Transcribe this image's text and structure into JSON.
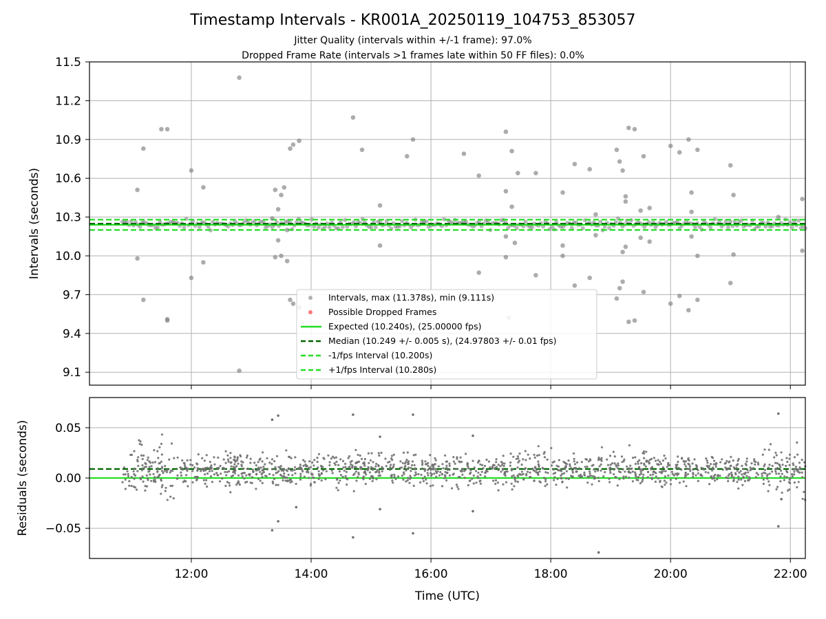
{
  "chart_data": [
    {
      "type": "scatter",
      "title": "Timestamp Intervals - KR001A_20250119_104753_853057",
      "subtitle_lines": [
        "Jitter Quality (intervals within +/-1 frame): 97.0%",
        "Dropped Frame Rate (intervals >1 frames late within 50 FF files): 0.0%"
      ],
      "ylabel": "Intervals (seconds)",
      "xlim": [
        10.3,
        22.25
      ],
      "ylim": [
        9.0,
        11.5
      ],
      "yticks": [
        9.1,
        9.4,
        9.7,
        10.0,
        10.3,
        10.6,
        10.9,
        11.2,
        11.5
      ],
      "ytick_labels": [
        "9.1",
        "9.4",
        "9.7",
        "10.0",
        "10.3",
        "10.6",
        "10.9",
        "11.2",
        "11.5"
      ],
      "xticks": [
        12,
        14,
        16,
        18,
        20,
        22
      ],
      "grid": true,
      "legend_position": "lower-center",
      "series": [
        {
          "name": "Intervals, max (11.378s), min (9.111s)",
          "color": "#808080",
          "marker": "circle",
          "x": [
            11.1,
            11.1,
            11.2,
            11.2,
            11.5,
            11.6,
            11.6,
            11.6,
            12.0,
            12.0,
            12.2,
            12.2,
            12.8,
            12.8,
            13.35,
            13.4,
            13.4,
            13.45,
            13.45,
            13.5,
            13.5,
            13.55,
            13.6,
            13.6,
            13.65,
            13.65,
            13.7,
            13.7,
            13.8,
            13.8,
            14.7,
            14.85,
            15.15,
            15.15,
            15.6,
            15.7,
            16.55,
            16.8,
            16.8,
            17.25,
            17.25,
            17.25,
            17.25,
            17.3,
            17.35,
            17.35,
            17.4,
            17.45,
            17.75,
            17.75,
            18.2,
            18.2,
            18.2,
            18.4,
            18.4,
            18.65,
            18.65,
            18.75,
            18.75,
            19.1,
            19.1,
            19.15,
            19.15,
            19.2,
            19.2,
            19.2,
            19.25,
            19.25,
            19.25,
            19.3,
            19.3,
            19.4,
            19.4,
            19.5,
            19.5,
            19.55,
            19.55,
            19.65,
            19.65,
            20.0,
            20.0,
            20.15,
            20.15,
            20.3,
            20.3,
            20.35,
            20.35,
            20.35,
            20.45,
            20.45,
            20.45,
            21.0,
            21.0,
            21.05,
            21.05,
            21.8,
            22.2,
            22.2
          ],
          "y": [
            10.51,
            9.98,
            10.83,
            9.66,
            10.98,
            9.51,
            10.98,
            9.5,
            10.66,
            9.83,
            10.53,
            9.95,
            11.378,
            9.111,
            10.29,
            10.51,
            9.99,
            10.36,
            10.12,
            10.47,
            10.0,
            10.53,
            9.96,
            10.2,
            10.83,
            9.66,
            10.86,
            9.63,
            10.89,
            9.6,
            11.07,
            10.82,
            10.39,
            10.08,
            10.77,
            10.9,
            10.79,
            10.62,
            9.87,
            10.96,
            10.5,
            10.15,
            9.99,
            9.52,
            10.81,
            10.38,
            10.1,
            10.64,
            10.64,
            9.85,
            10.49,
            10.08,
            10.0,
            10.71,
            9.77,
            10.67,
            9.83,
            10.32,
            10.16,
            10.82,
            9.67,
            10.73,
            9.75,
            10.66,
            10.03,
            9.8,
            10.46,
            10.42,
            10.07,
            10.99,
            9.49,
            10.98,
            9.5,
            10.35,
            10.14,
            10.77,
            9.72,
            10.37,
            10.11,
            10.85,
            9.63,
            10.8,
            9.69,
            10.9,
            9.58,
            10.49,
            10.34,
            10.15,
            10.82,
            9.66,
            10.0,
            10.7,
            9.79,
            10.47,
            10.01,
            10.3,
            10.44,
            10.04
          ]
        },
        {
          "name": "Possible Dropped Frames",
          "color": "#ff4444",
          "marker": "circle",
          "x": [],
          "y": []
        }
      ],
      "band": {
        "x_start": 10.85,
        "x_end": 22.25,
        "y_center": 10.245,
        "spread": 0.018,
        "color": "#808080"
      },
      "reference_lines": [
        {
          "name": "Expected (10.240s), (25.00000 fps)",
          "y": 10.24,
          "color": "#22dd22",
          "style": "solid"
        },
        {
          "name": "Median (10.249 +/- 0.005 s), (24.97803 +/- 0.01 fps)",
          "y": 10.249,
          "color": "#006400",
          "style": "dashed"
        },
        {
          "name": "-1/fps Interval (10.200s)",
          "y": 10.2,
          "color": "#22dd22",
          "style": "dashed"
        },
        {
          "name": "+1/fps Interval (10.280s)",
          "y": 10.28,
          "color": "#22dd22",
          "style": "dashed"
        }
      ]
    },
    {
      "type": "scatter",
      "xlabel": "Time (UTC)",
      "ylabel": "Residuals (seconds)",
      "xlim": [
        10.3,
        22.25
      ],
      "ylim": [
        -0.08,
        0.08
      ],
      "yticks": [
        -0.05,
        0.0,
        0.05
      ],
      "ytick_labels": [
        "−0.05",
        "0.00",
        "0.05"
      ],
      "xticks": [
        12,
        14,
        16,
        18,
        20,
        22
      ],
      "xtick_labels": [
        "12:00",
        "14:00",
        "16:00",
        "18:00",
        "20:00",
        "22:00"
      ],
      "grid": true,
      "series": [
        {
          "name": "Residuals",
          "color": "#707070",
          "marker": "dot",
          "x": [
            13.35,
            13.45,
            13.35,
            13.45,
            13.75,
            14.7,
            14.7,
            15.15,
            15.15,
            15.7,
            15.7,
            16.7,
            16.7,
            18.8,
            21.8,
            21.8,
            21.85
          ],
          "y": [
            0.058,
            0.062,
            -0.052,
            -0.043,
            -0.029,
            0.063,
            -0.059,
            0.041,
            -0.031,
            0.063,
            -0.055,
            0.042,
            -0.033,
            -0.074,
            0.064,
            -0.048,
            -0.021
          ]
        }
      ],
      "cloud": {
        "x_start": 10.85,
        "x_end": 22.25,
        "center": 0.008,
        "spread": 0.008,
        "count": 1400
      },
      "reference_lines": [
        {
          "name": "Median",
          "y": 0.009,
          "color": "#006400",
          "style": "dashed"
        },
        {
          "name": "Expected",
          "y": 0.0,
          "color": "#22dd22",
          "style": "solid",
          "trend_end": 0.0
        }
      ]
    }
  ]
}
